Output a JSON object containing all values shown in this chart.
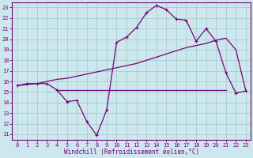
{
  "xlabel": "Windchill (Refroidissement éolien,°C)",
  "background_color": "#cce8ee",
  "grid_color": "#aacccc",
  "line_color": "#770077",
  "xlim": [
    -0.5,
    23.5
  ],
  "ylim": [
    10.5,
    23.5
  ],
  "xticks": [
    0,
    1,
    2,
    3,
    4,
    5,
    6,
    7,
    8,
    9,
    10,
    11,
    12,
    13,
    14,
    15,
    16,
    17,
    18,
    19,
    20,
    21,
    22,
    23
  ],
  "yticks": [
    11,
    12,
    13,
    14,
    15,
    16,
    17,
    18,
    19,
    20,
    21,
    22,
    23
  ],
  "line1_x": [
    0,
    1,
    2,
    3,
    4,
    5,
    6,
    7,
    8,
    9,
    10,
    11,
    12,
    13,
    14,
    15,
    16,
    17,
    18,
    19,
    20,
    21,
    22,
    23
  ],
  "line1_y": [
    15.6,
    15.8,
    15.8,
    15.8,
    15.2,
    14.1,
    14.2,
    12.2,
    10.9,
    13.3,
    19.7,
    20.2,
    21.1,
    22.5,
    23.2,
    22.8,
    21.9,
    21.8,
    19.8,
    21.0,
    19.8,
    16.8,
    14.9,
    15.1
  ],
  "line2_x": [
    4,
    5,
    6,
    7,
    8,
    9,
    10,
    11,
    12,
    13,
    14,
    15,
    16,
    17,
    18,
    19,
    20,
    21
  ],
  "line2_y": [
    15.2,
    15.2,
    15.2,
    15.2,
    15.2,
    15.2,
    15.2,
    15.2,
    15.2,
    15.2,
    15.2,
    15.2,
    15.2,
    15.2,
    15.2,
    15.2,
    15.2,
    15.2
  ],
  "line3_x": [
    0,
    1,
    2,
    3,
    4,
    5,
    6,
    7,
    8,
    9,
    10,
    11,
    12,
    13,
    14,
    15,
    16,
    17,
    18,
    19,
    20,
    21,
    22,
    23
  ],
  "line3_y": [
    15.6,
    15.7,
    15.8,
    16.0,
    16.2,
    16.3,
    16.5,
    16.7,
    16.9,
    17.1,
    17.3,
    17.5,
    17.7,
    18.0,
    18.3,
    18.6,
    18.9,
    19.2,
    19.4,
    19.6,
    19.9,
    20.1,
    19.0,
    15.1
  ]
}
